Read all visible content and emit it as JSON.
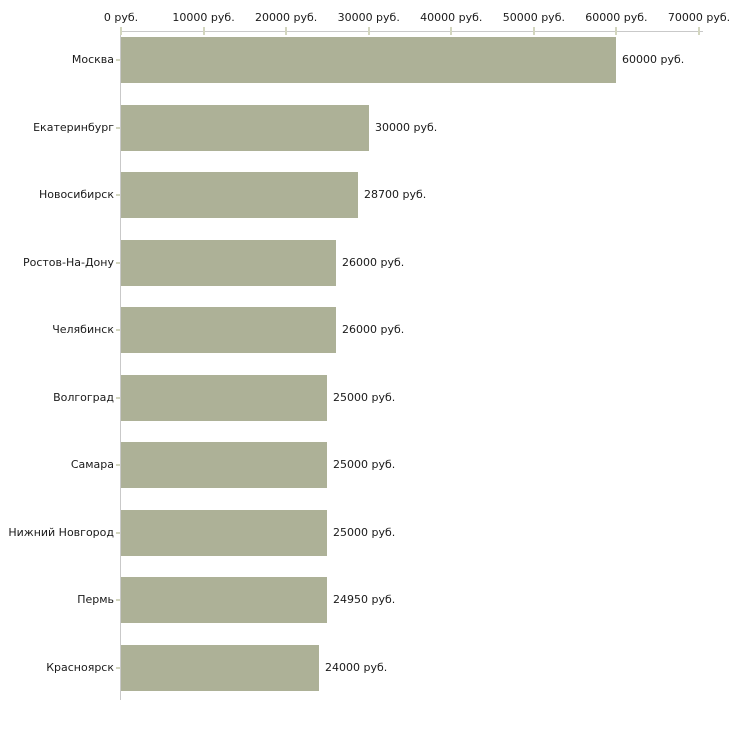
{
  "chart_data": {
    "type": "bar",
    "orientation": "horizontal",
    "title": "",
    "xlabel": "",
    "ylabel": "",
    "categories": [
      "Москва",
      "Екатеринбург",
      "Новосибирск",
      "Ростов-На-Дону",
      "Челябинск",
      "Волгоград",
      "Самара",
      "Нижний Новгород",
      "Пермь",
      "Красноярск"
    ],
    "values": [
      60000,
      30000,
      28700,
      26000,
      26000,
      25000,
      25000,
      25000,
      24950,
      24000
    ],
    "value_labels": [
      "60000 руб.",
      "30000 руб.",
      "28700 руб.",
      "26000 руб.",
      "26000 руб.",
      "25000 руб.",
      "25000 руб.",
      "25000 руб.",
      "24950 руб.",
      "24000 руб."
    ],
    "x_ticks": {
      "values": [
        0,
        10000,
        20000,
        30000,
        40000,
        50000,
        60000,
        70000
      ],
      "labels": [
        "0 руб.",
        "10000 руб.",
        "20000 руб.",
        "30000 руб.",
        "40000 руб.",
        "50000 руб.",
        "60000 руб.",
        "70000 руб."
      ]
    },
    "xlim": [
      0,
      70000
    ],
    "unit": "руб.",
    "legend": "none",
    "grid": "off",
    "colors": {
      "bar": "#adb197",
      "axis_line": "#c9c9c9",
      "tick_mark": "#d3d6bf",
      "text": "#1a1a1a",
      "background": "#ffffff"
    }
  }
}
